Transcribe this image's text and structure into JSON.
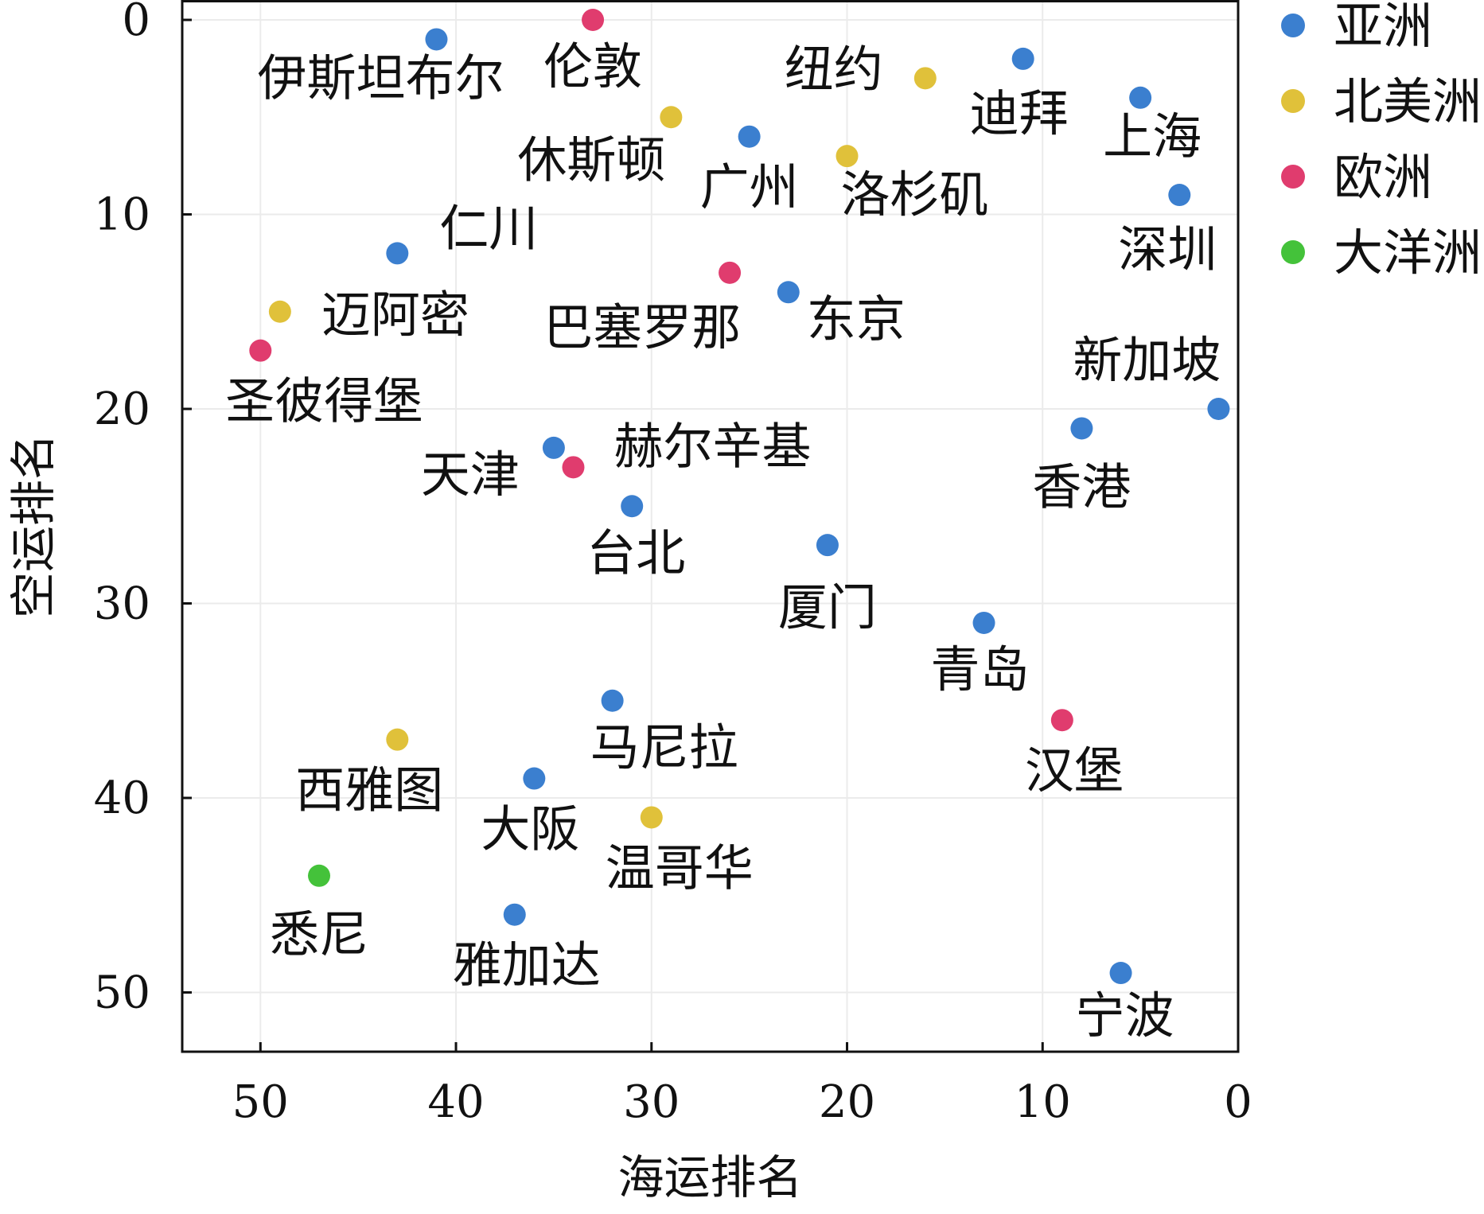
{
  "chart_data": {
    "type": "scatter",
    "title": "",
    "xlabel": "海运排名",
    "ylabel": "空运排名",
    "xlim": [
      54,
      0
    ],
    "ylim": [
      0,
      54
    ],
    "x_reversed": true,
    "y_reversed": true,
    "xticks": [
      50,
      40,
      30,
      20,
      10,
      0
    ],
    "yticks": [
      0,
      10,
      20,
      30,
      40,
      50
    ],
    "grid": true,
    "legend_position": "right",
    "series": [
      {
        "name": "亚洲",
        "color": "#3b7fcf",
        "points": [
          {
            "label": "伊斯坦布尔",
            "x": 41,
            "y": 1
          },
          {
            "label": "迪拜",
            "x": 11,
            "y": 2
          },
          {
            "label": "上海",
            "x": 5,
            "y": 4
          },
          {
            "label": "广州",
            "x": 25,
            "y": 6
          },
          {
            "label": "深圳",
            "x": 3,
            "y": 9
          },
          {
            "label": "仁川",
            "x": 43,
            "y": 12
          },
          {
            "label": "东京",
            "x": 23,
            "y": 14
          },
          {
            "label": "新加坡",
            "x": 1,
            "y": 20
          },
          {
            "label": "香港",
            "x": 8,
            "y": 21
          },
          {
            "label": "天津",
            "x": 35,
            "y": 22
          },
          {
            "label": "台北",
            "x": 31,
            "y": 25
          },
          {
            "label": "厦门",
            "x": 21,
            "y": 27
          },
          {
            "label": "青岛",
            "x": 13,
            "y": 31
          },
          {
            "label": "马尼拉",
            "x": 32,
            "y": 35
          },
          {
            "label": "大阪",
            "x": 36,
            "y": 39
          },
          {
            "label": "雅加达",
            "x": 37,
            "y": 46
          },
          {
            "label": "宁波",
            "x": 6,
            "y": 49
          }
        ]
      },
      {
        "name": "北美洲",
        "color": "#e0c13a",
        "points": [
          {
            "label": "纽约",
            "x": 16,
            "y": 3
          },
          {
            "label": "休斯顿",
            "x": 29,
            "y": 5
          },
          {
            "label": "洛杉矶",
            "x": 20,
            "y": 7
          },
          {
            "label": "迈阿密",
            "x": 49,
            "y": 15
          },
          {
            "label": "西雅图",
            "x": 43,
            "y": 37
          },
          {
            "label": "温哥华",
            "x": 30,
            "y": 41
          }
        ]
      },
      {
        "name": "欧洲",
        "color": "#e03c6e",
        "points": [
          {
            "label": "伦敦",
            "x": 33,
            "y": 0
          },
          {
            "label": "巴塞罗那",
            "x": 26,
            "y": 13
          },
          {
            "label": "圣彼得堡",
            "x": 50,
            "y": 17
          },
          {
            "label": "赫尔辛基",
            "x": 34,
            "y": 23
          },
          {
            "label": "汉堡",
            "x": 9,
            "y": 36
          }
        ]
      },
      {
        "name": "大洋洲",
        "color": "#44c23a",
        "points": [
          {
            "label": "悉尼",
            "x": 47,
            "y": 44
          }
        ]
      }
    ]
  }
}
